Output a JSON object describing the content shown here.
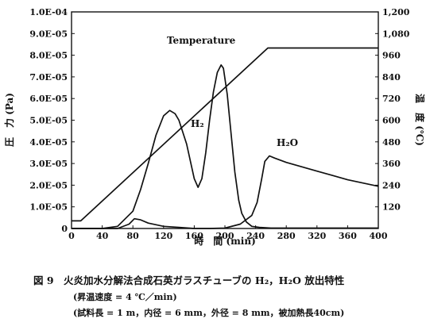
{
  "chart_data": {
    "type": "line",
    "title": "",
    "xlabel": "時　間 (min)",
    "ylabel_left": "圧　力 (Pa)",
    "ylabel_right": "温　度 (℃)",
    "xlim": [
      0,
      400
    ],
    "ylim_left": [
      0,
      0.0001
    ],
    "ylim_right": [
      0,
      1200
    ],
    "x_ticks": [
      "0",
      "40",
      "80",
      "120",
      "160",
      "200",
      "240",
      "280",
      "320",
      "360",
      "400"
    ],
    "y_left_ticks": [
      "1.0E-04",
      "9.0E-05",
      "8.0E-05",
      "7.0E-05",
      "6.0E-05",
      "5.0E-05",
      "4.0E-05",
      "3.0E-05",
      "2.0E-05",
      "1.0E-05",
      "0"
    ],
    "y_right_ticks": [
      "1,200",
      "1,080",
      "960",
      "840",
      "720",
      "600",
      "480",
      "360",
      "240",
      "120"
    ],
    "grid": false,
    "series": [
      {
        "name": "Temperature",
        "axis": "right",
        "x": [
          0,
          12,
          256,
          400
        ],
        "y": [
          42,
          42,
          1000,
          1000
        ]
      },
      {
        "name": "H₂",
        "axis": "left",
        "x": [
          0,
          40,
          60,
          80,
          90,
          100,
          110,
          120,
          128,
          135,
          140,
          150,
          160,
          165,
          170,
          175,
          180,
          185,
          190,
          195,
          198,
          203,
          208,
          213,
          218,
          222,
          228,
          235,
          245,
          260,
          400
        ],
        "y": [
          0,
          0,
          1e-06,
          8e-06,
          1.8e-05,
          3e-05,
          4.3e-05,
          5.2e-05,
          5.45e-05,
          5.3e-05,
          5e-05,
          3.9e-05,
          2.3e-05,
          1.9e-05,
          2.3e-05,
          3.5e-05,
          5e-05,
          6.3e-05,
          7.2e-05,
          7.55e-05,
          7.4e-05,
          6.2e-05,
          4.4e-05,
          2.6e-05,
          1.3e-05,
          7e-06,
          3e-06,
          1e-06,
          5e-07,
          2e-07,
          2e-07
        ]
      },
      {
        "name": "H₂O",
        "axis": "left",
        "x": [
          0,
          60,
          75,
          82,
          90,
          100,
          120,
          140,
          160,
          180,
          200,
          220,
          235,
          242,
          248,
          252,
          258,
          265,
          280,
          300,
          320,
          340,
          360,
          380,
          400
        ],
        "y": [
          0,
          0,
          2e-06,
          4.5e-06,
          4e-06,
          2.5e-06,
          1e-06,
          5e-07,
          0,
          0,
          2e-07,
          2e-06,
          6e-06,
          1.2e-05,
          2.3e-05,
          3.1e-05,
          3.35e-05,
          3.25e-05,
          3.05e-05,
          2.85e-05,
          2.65e-05,
          2.45e-05,
          2.25e-05,
          2.1e-05,
          1.95e-05
        ]
      }
    ],
    "annotations": [
      "Temperature",
      "H₂",
      "H₂O"
    ]
  },
  "caption": {
    "title": "図 9　火炎加水分解法合成石英ガラスチューブの H₂，H₂O 放出特性",
    "line1": "(昇温速度 = 4 ℃／min)",
    "line2": "(試料長 = 1 m，内径 = 6 mm，外径 = 8 mm，被加熱長40cm)"
  }
}
